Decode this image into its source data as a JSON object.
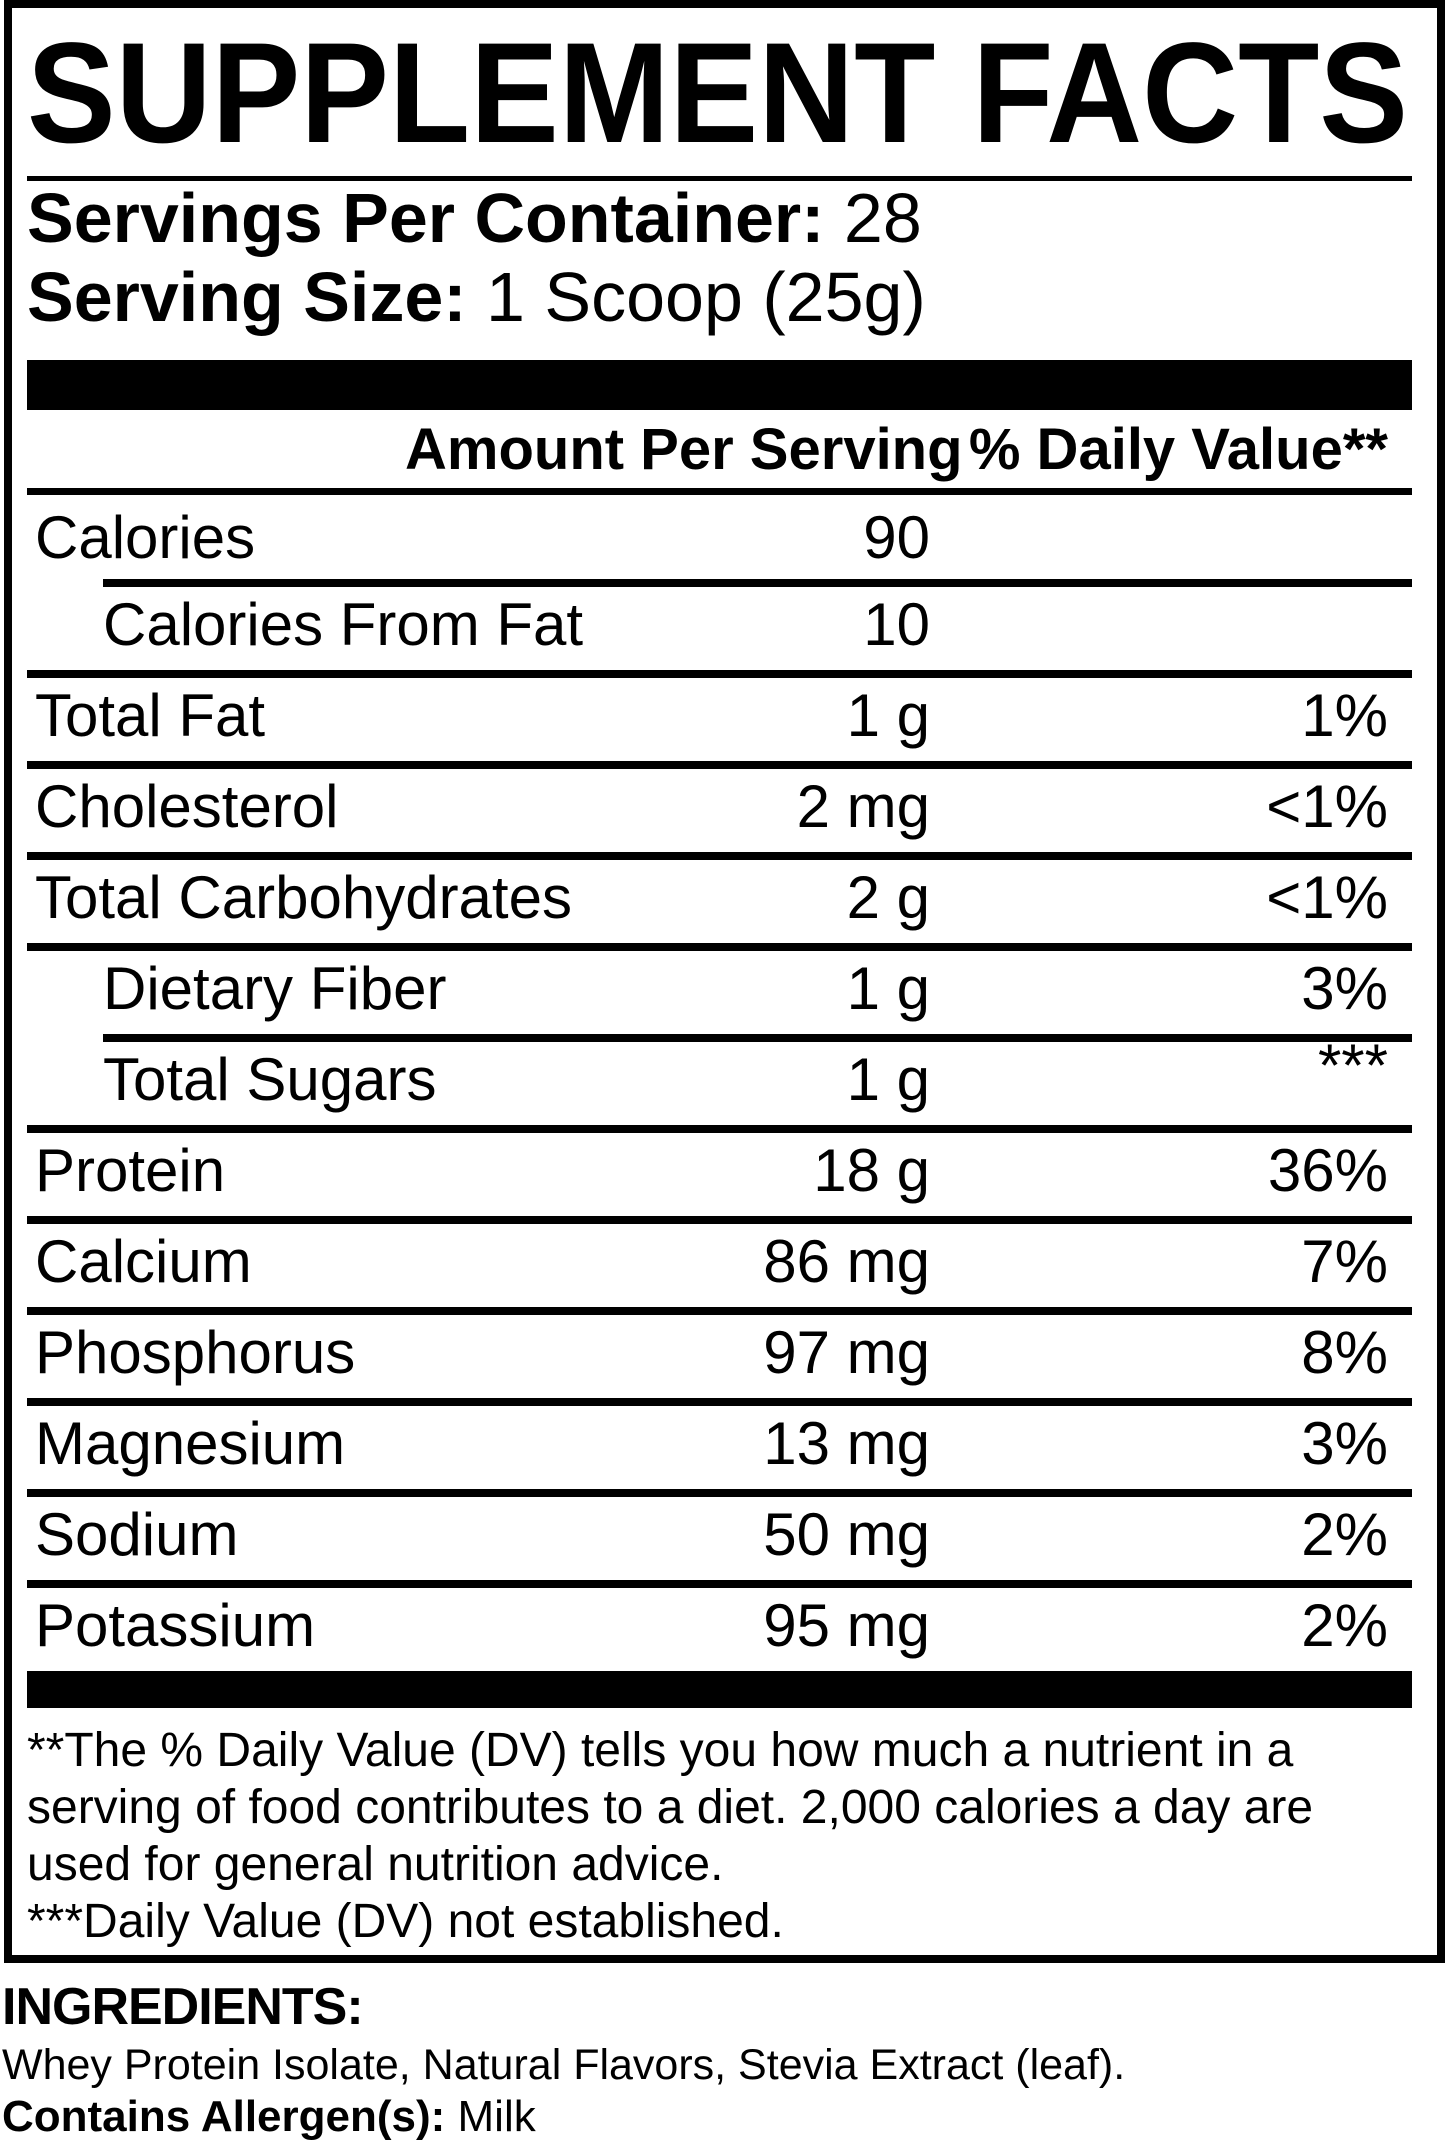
{
  "title": "SUPPLEMENT FACTS",
  "servings": {
    "label": "Servings Per Container:",
    "value": "28"
  },
  "serving_size": {
    "label": "Serving Size:",
    "value": "1 Scoop (25g)"
  },
  "table": {
    "amount_header": "Amount Per Serving",
    "dv_header": "% Daily Value**",
    "rows": [
      {
        "name": "Calories",
        "amount": "90",
        "dv": "",
        "sub": false,
        "sub_rule": false,
        "dv_raised": false
      },
      {
        "name": "Calories From Fat",
        "amount": "10",
        "dv": "",
        "sub": true,
        "sub_rule": true,
        "dv_raised": false
      },
      {
        "name": "Total Fat",
        "amount": "1 g",
        "dv": "1%",
        "sub": false,
        "sub_rule": false,
        "dv_raised": false
      },
      {
        "name": "Cholesterol",
        "amount": "2 mg",
        "dv": "<1%",
        "sub": false,
        "sub_rule": false,
        "dv_raised": false
      },
      {
        "name": "Total Carbohydrates",
        "amount": "2 g",
        "dv": "<1%",
        "sub": false,
        "sub_rule": false,
        "dv_raised": false
      },
      {
        "name": "Dietary Fiber",
        "amount": "1 g",
        "dv": "3%",
        "sub": true,
        "sub_rule": false,
        "dv_raised": false
      },
      {
        "name": "Total Sugars",
        "amount": "1 g",
        "dv": "***",
        "sub": true,
        "sub_rule": true,
        "dv_raised": true
      },
      {
        "name": "Protein",
        "amount": "18 g",
        "dv": "36%",
        "sub": false,
        "sub_rule": false,
        "dv_raised": false
      },
      {
        "name": "Calcium",
        "amount": "86 mg",
        "dv": "7%",
        "sub": false,
        "sub_rule": false,
        "dv_raised": false
      },
      {
        "name": "Phosphorus",
        "amount": "97 mg",
        "dv": "8%",
        "sub": false,
        "sub_rule": false,
        "dv_raised": false
      },
      {
        "name": "Magnesium",
        "amount": "13 mg",
        "dv": "3%",
        "sub": false,
        "sub_rule": false,
        "dv_raised": false
      },
      {
        "name": "Sodium",
        "amount": "50 mg",
        "dv": "2%",
        "sub": false,
        "sub_rule": false,
        "dv_raised": false
      },
      {
        "name": "Potassium",
        "amount": "95 mg",
        "dv": "2%",
        "sub": false,
        "sub_rule": false,
        "dv_raised": false
      }
    ]
  },
  "footnotes": {
    "dv_note": "**The % Daily Value (DV) tells you how much a nutrient in a serving of food contributes to a diet. 2,000 calories a day are used for general nutrition advice.",
    "not_established": "***Daily Value (DV) not established."
  },
  "ingredients": {
    "heading": "INGREDIENTS:",
    "list": "Whey Protein Isolate, Natural Flavors, Stevia Extract (leaf).",
    "allergen_label": "Contains Allergen(s):",
    "allergen_value": "Milk"
  },
  "colors": {
    "text": "#000000",
    "background": "#ffffff"
  }
}
